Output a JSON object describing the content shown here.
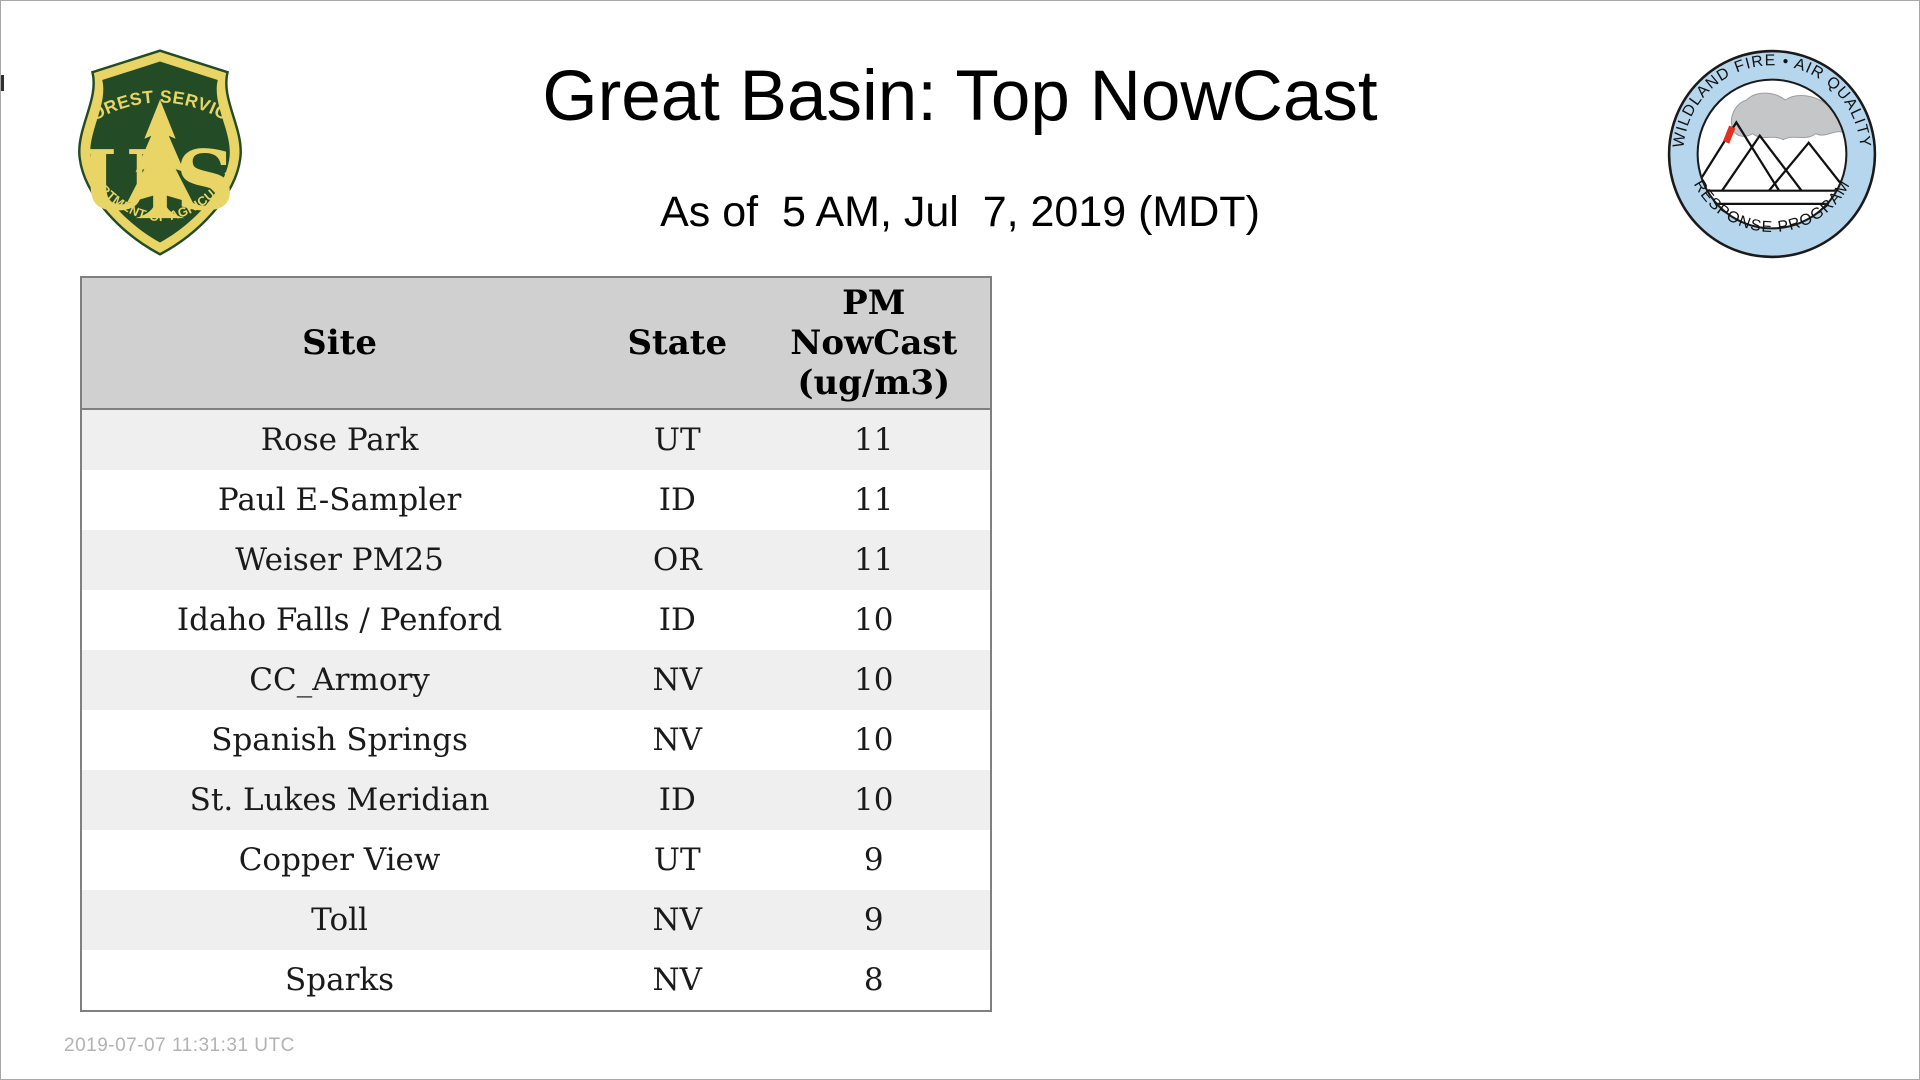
{
  "header": {
    "title": "Great Basin: Top NowCast",
    "subtitle": "As of  5 AM, Jul  7, 2019 (MDT)"
  },
  "logos": {
    "usfs": {
      "name": "US Forest Service shield",
      "arc_top": "FOREST SERVICE",
      "letter_u": "U",
      "letter_s": "S",
      "arc_bottom": "DEPARTMENT OF AGRICULTURE",
      "green": "#234b26",
      "gold": "#e8d566"
    },
    "wfaqrp": {
      "name": "Wildland Fire Air Quality Response Program badge",
      "arc_top": "WILDLAND FIRE • AIR QUALITY",
      "arc_bottom": "RESPONSE PROGRAM",
      "ring_blue": "#b5d6ed",
      "smoke_gray": "#c5c6c8",
      "flame_red": "#e03124"
    }
  },
  "table": {
    "columns": [
      "Site",
      "State",
      "PM\nNowCast\n(ug/m3)"
    ],
    "rows": [
      {
        "site": "Rose Park",
        "state": "UT",
        "nowcast": "11"
      },
      {
        "site": "Paul E-Sampler",
        "state": "ID",
        "nowcast": "11"
      },
      {
        "site": "Weiser PM25",
        "state": "OR",
        "nowcast": "11"
      },
      {
        "site": "Idaho Falls / Penford",
        "state": "ID",
        "nowcast": "10"
      },
      {
        "site": "CC_Armory",
        "state": "NV",
        "nowcast": "10"
      },
      {
        "site": "Spanish Springs",
        "state": "NV",
        "nowcast": "10"
      },
      {
        "site": "St. Lukes Meridian",
        "state": "ID",
        "nowcast": "10"
      },
      {
        "site": "Copper View",
        "state": "UT",
        "nowcast": "9"
      },
      {
        "site": "Toll",
        "state": "NV",
        "nowcast": "9"
      },
      {
        "site": "Sparks",
        "state": "NV",
        "nowcast": "8"
      }
    ],
    "header_bg": "#d0d0d0",
    "row_alt_bg": "#efefef",
    "border_color": "#7f7f7f"
  },
  "footer": {
    "timestamp": "2019-07-07 11:31:31 UTC"
  }
}
